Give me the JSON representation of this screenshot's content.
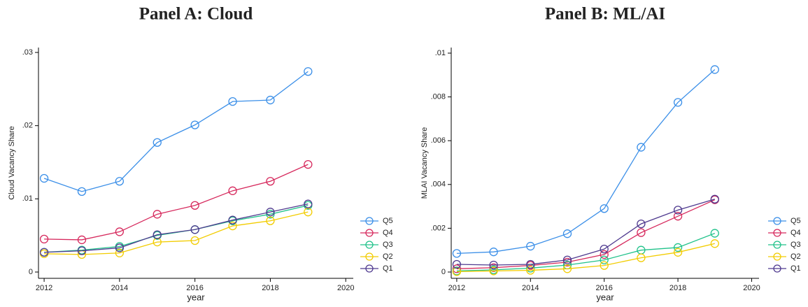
{
  "chart_data": [
    {
      "type": "line",
      "title": "Panel A: Cloud",
      "x_label": "year",
      "y_label": "Cloud Vacancy Share",
      "x": [
        2012,
        2013,
        2014,
        2015,
        2016,
        2017,
        2018,
        2019
      ],
      "xlim": [
        2011.85,
        2020.2
      ],
      "xticks": [
        2012,
        2014,
        2016,
        2018,
        2020
      ],
      "ylim": [
        -0.00086,
        0.03067
      ],
      "yticks": [
        0,
        {
          "value": 0.01,
          "label": ".01"
        },
        {
          "value": 0.02,
          "label": ".02"
        },
        {
          "value": 0.03,
          "label": ".03"
        }
      ],
      "legend": "right",
      "series": [
        {
          "name": "Q5",
          "color": "#3b8fe8",
          "values": [
            0.0128,
            0.011,
            0.0124,
            0.0177,
            0.0201,
            0.0233,
            0.0235,
            0.0274
          ]
        },
        {
          "name": "Q4",
          "color": "#d6285c",
          "values": [
            0.0045,
            0.0044,
            0.0055,
            0.0079,
            0.0091,
            0.0111,
            0.0124,
            0.0147
          ]
        },
        {
          "name": "Q3",
          "color": "#20c28a",
          "values": [
            0.0027,
            0.003,
            0.0035,
            0.005,
            0.0058,
            0.007,
            0.0079,
            0.0091
          ]
        },
        {
          "name": "Q2",
          "color": "#f2cc00",
          "values": [
            0.0025,
            0.0024,
            0.0026,
            0.0041,
            0.0043,
            0.0063,
            0.007,
            0.0082
          ]
        },
        {
          "name": "Q1",
          "color": "#4f3a8f",
          "values": [
            0.0027,
            0.0029,
            0.0033,
            0.0051,
            0.0058,
            0.0071,
            0.0082,
            0.0093
          ]
        }
      ]
    },
    {
      "type": "line",
      "title": "Panel B: ML/AI",
      "x_label": "year",
      "y_label": "MLAI Vacancy Share",
      "x": [
        2012,
        2013,
        2014,
        2015,
        2016,
        2017,
        2018,
        2019
      ],
      "xlim": [
        2011.85,
        2020.2
      ],
      "xticks": [
        2012,
        2014,
        2016,
        2018,
        2020
      ],
      "ylim": [
        -0.000288,
        0.010255
      ],
      "yticks": [
        0,
        {
          "value": 0.002,
          "label": ".002"
        },
        {
          "value": 0.004,
          "label": ".004"
        },
        {
          "value": 0.006,
          "label": ".006"
        },
        {
          "value": 0.008,
          "label": ".008"
        },
        {
          "value": 0.01,
          "label": ".01"
        }
      ],
      "legend": "right",
      "series": [
        {
          "name": "Q5",
          "color": "#3b8fe8",
          "values": [
            0.00085,
            0.00092,
            0.00118,
            0.00175,
            0.0029,
            0.0057,
            0.00775,
            0.00925
          ]
        },
        {
          "name": "Q4",
          "color": "#d6285c",
          "values": [
            0.00015,
            0.0002,
            0.0003,
            0.00045,
            0.0008,
            0.0018,
            0.00255,
            0.0033
          ]
        },
        {
          "name": "Q3",
          "color": "#20c28a",
          "values": [
            5e-05,
            0.0001,
            0.00018,
            0.00032,
            0.00055,
            0.001,
            0.00112,
            0.00177
          ]
        },
        {
          "name": "Q2",
          "color": "#f2cc00",
          "values": [
            2e-05,
            5e-05,
            8e-05,
            0.00015,
            0.0003,
            0.00065,
            0.0009,
            0.0013
          ]
        },
        {
          "name": "Q1",
          "color": "#4f3a8f",
          "values": [
            0.00035,
            0.00032,
            0.00035,
            0.00055,
            0.00105,
            0.0022,
            0.00283,
            0.00333
          ]
        }
      ]
    }
  ]
}
